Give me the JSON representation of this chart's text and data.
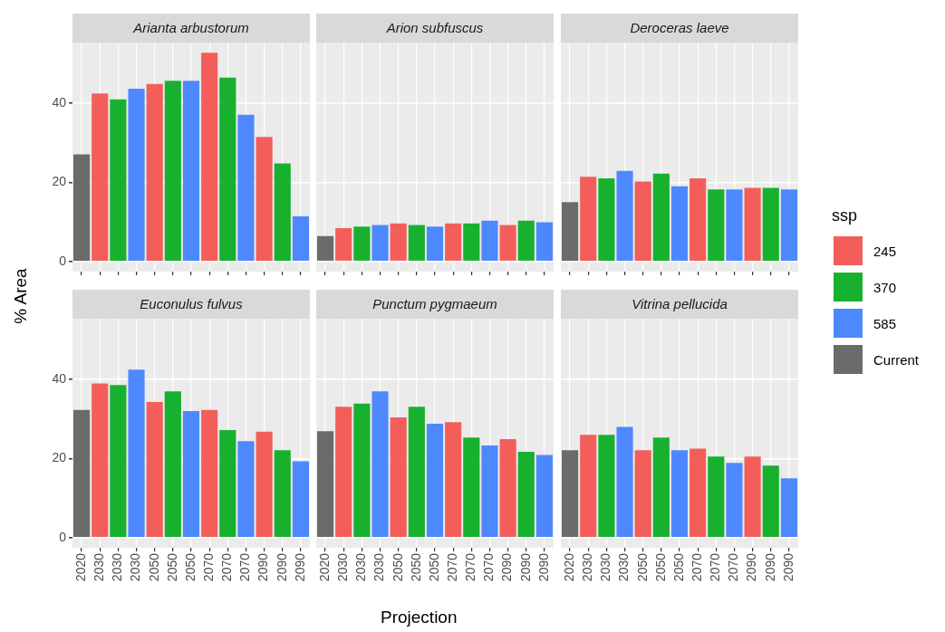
{
  "chart_data": [
    {
      "type": "bar",
      "title": "Arianta arbustorum",
      "ylabel": "% Area",
      "xlabel": "Projection",
      "legend": "right",
      "legend_title": "ssp",
      "grid": true,
      "tick_labels": "y",
      "ylim": [
        -2.6,
        55.4
      ],
      "yticks": [
        0,
        20,
        40
      ],
      "categories": [
        "2020",
        "2030",
        "2030",
        "2030",
        "2050",
        "2050",
        "2050",
        "2070",
        "2070",
        "2070",
        "2090",
        "2090",
        "2090"
      ],
      "series": [
        {
          "name": "245",
          "color": "#f35e5a",
          "values": [
            null,
            42.5,
            null,
            null,
            44.9,
            null,
            null,
            52.8,
            null,
            null,
            31.5,
            null,
            null
          ]
        },
        {
          "name": "370",
          "color": "#18b12f",
          "values": [
            null,
            null,
            41.0,
            null,
            null,
            45.7,
            null,
            null,
            46.5,
            null,
            null,
            24.8,
            null
          ]
        },
        {
          "name": "585",
          "color": "#4e88ff",
          "values": [
            null,
            null,
            null,
            43.7,
            null,
            null,
            45.7,
            null,
            null,
            37.1,
            null,
            null,
            11.4
          ]
        },
        {
          "name": "Current",
          "color": "#6b6b6b",
          "values": [
            27.1,
            null,
            null,
            null,
            null,
            null,
            null,
            null,
            null,
            null,
            null,
            null,
            null
          ]
        }
      ]
    },
    {
      "type": "bar",
      "title": "Arion subfuscus",
      "grid": true,
      "tick_labels": false,
      "ylim": [
        -2.6,
        55.4
      ],
      "yticks": [
        0,
        20,
        40
      ],
      "categories": [
        "2020",
        "2030",
        "2030",
        "2030",
        "2050",
        "2050",
        "2050",
        "2070",
        "2070",
        "2070",
        "2090",
        "2090",
        "2090"
      ],
      "series": [
        {
          "color": "#f35e5a",
          "values": [
            null,
            8.4,
            null,
            null,
            9.6,
            null,
            null,
            9.6,
            null,
            null,
            9.2,
            null,
            null
          ]
        },
        {
          "color": "#18b12f",
          "values": [
            null,
            null,
            8.8,
            null,
            null,
            9.2,
            null,
            null,
            9.6,
            null,
            null,
            10.3,
            null
          ]
        },
        {
          "color": "#4e88ff",
          "values": [
            null,
            null,
            null,
            9.2,
            null,
            null,
            8.8,
            null,
            null,
            10.3,
            null,
            null,
            9.9
          ]
        },
        {
          "color": "#6b6b6b",
          "values": [
            6.4,
            null,
            null,
            null,
            null,
            null,
            null,
            null,
            null,
            null,
            null,
            null,
            null
          ]
        }
      ]
    },
    {
      "type": "bar",
      "title": "Deroceras laeve",
      "grid": true,
      "tick_labels": false,
      "ylim": [
        -2.6,
        55.4
      ],
      "yticks": [
        0,
        20,
        40
      ],
      "categories": [
        "2020",
        "2030",
        "2030",
        "2030",
        "2050",
        "2050",
        "2050",
        "2070",
        "2070",
        "2070",
        "2090",
        "2090",
        "2090"
      ],
      "series": [
        {
          "color": "#f35e5a",
          "values": [
            null,
            21.4,
            null,
            null,
            20.2,
            null,
            null,
            21.0,
            null,
            null,
            18.6,
            null,
            null
          ]
        },
        {
          "color": "#18b12f",
          "values": [
            null,
            null,
            21.0,
            null,
            null,
            22.2,
            null,
            null,
            18.2,
            null,
            null,
            18.6,
            null
          ]
        },
        {
          "color": "#4e88ff",
          "values": [
            null,
            null,
            null,
            22.9,
            null,
            null,
            19.0,
            null,
            null,
            18.2,
            null,
            null,
            18.2
          ]
        },
        {
          "color": "#6b6b6b",
          "values": [
            15.0,
            null,
            null,
            null,
            null,
            null,
            null,
            null,
            null,
            null,
            null,
            null,
            null
          ]
        }
      ]
    },
    {
      "type": "bar",
      "title": "Euconulus fulvus",
      "grid": true,
      "ylim": [
        -2.6,
        55.4
      ],
      "yticks": [
        0,
        20,
        40
      ],
      "categories": [
        "2020",
        "2030",
        "2030",
        "2030",
        "2050",
        "2050",
        "2050",
        "2070",
        "2070",
        "2070",
        "2090",
        "2090",
        "2090"
      ],
      "series": [
        {
          "color": "#f35e5a",
          "values": [
            null,
            39.0,
            null,
            null,
            34.3,
            null,
            null,
            32.3,
            null,
            null,
            26.8,
            null,
            null
          ]
        },
        {
          "color": "#18b12f",
          "values": [
            null,
            null,
            38.6,
            null,
            null,
            37.0,
            null,
            null,
            27.2,
            null,
            null,
            22.1,
            null
          ]
        },
        {
          "color": "#4e88ff",
          "values": [
            null,
            null,
            null,
            42.5,
            null,
            null,
            32.0,
            null,
            null,
            24.4,
            null,
            null,
            19.3
          ]
        },
        {
          "color": "#6b6b6b",
          "values": [
            32.3,
            null,
            null,
            null,
            null,
            null,
            null,
            null,
            null,
            null,
            null,
            null,
            null
          ]
        }
      ]
    },
    {
      "type": "bar",
      "title": "Punctum pygmaeum",
      "grid": true,
      "tick_labels": "x",
      "ylim": [
        -2.6,
        55.4
      ],
      "yticks": [
        0,
        20,
        40
      ],
      "categories": [
        "2020",
        "2030",
        "2030",
        "2030",
        "2050",
        "2050",
        "2050",
        "2070",
        "2070",
        "2070",
        "2090",
        "2090",
        "2090"
      ],
      "series": [
        {
          "color": "#f35e5a",
          "values": [
            null,
            33.1,
            null,
            null,
            30.4,
            null,
            null,
            29.2,
            null,
            null,
            24.9,
            null,
            null
          ]
        },
        {
          "color": "#18b12f",
          "values": [
            null,
            null,
            33.9,
            null,
            null,
            33.1,
            null,
            null,
            25.3,
            null,
            null,
            21.7,
            null
          ]
        },
        {
          "color": "#4e88ff",
          "values": [
            null,
            null,
            null,
            37.0,
            null,
            null,
            28.8,
            null,
            null,
            23.3,
            null,
            null,
            20.9
          ]
        },
        {
          "color": "#6b6b6b",
          "values": [
            26.9,
            null,
            null,
            null,
            null,
            null,
            null,
            null,
            null,
            null,
            null,
            null,
            null
          ]
        }
      ]
    },
    {
      "type": "bar",
      "title": "Vitrina pellucida",
      "grid": true,
      "tick_labels": "x",
      "ylim": [
        -2.6,
        55.4
      ],
      "yticks": [
        0,
        20,
        40
      ],
      "categories": [
        "2020",
        "2030",
        "2030",
        "2030",
        "2050",
        "2050",
        "2050",
        "2070",
        "2070",
        "2070",
        "2090",
        "2090",
        "2090"
      ],
      "series": [
        {
          "color": "#f35e5a",
          "values": [
            null,
            26.0,
            null,
            null,
            22.1,
            null,
            null,
            22.5,
            null,
            null,
            20.5,
            null,
            null
          ]
        },
        {
          "color": "#18b12f",
          "values": [
            null,
            null,
            26.0,
            null,
            null,
            25.3,
            null,
            null,
            20.5,
            null,
            null,
            18.2,
            null
          ]
        },
        {
          "color": "#4e88ff",
          "values": [
            null,
            null,
            null,
            28.0,
            null,
            null,
            22.1,
            null,
            null,
            18.9,
            null,
            null,
            15.0
          ]
        },
        {
          "color": "#6b6b6b",
          "values": [
            22.1,
            null,
            null,
            null,
            null,
            null,
            null,
            null,
            null,
            null,
            null,
            null,
            null
          ]
        }
      ]
    }
  ]
}
